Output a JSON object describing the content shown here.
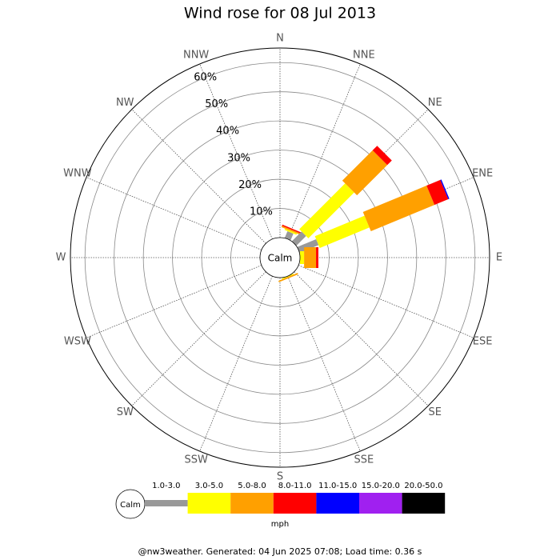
{
  "chart_data": {
    "type": "windrose",
    "title": "Wind rose for 08 Jul 2013",
    "calm_label": "Calm",
    "categories": [
      "N",
      "NNE",
      "NE",
      "ENE",
      "E",
      "ESE",
      "SE",
      "SSE",
      "S",
      "SSW",
      "SW",
      "WSW",
      "W",
      "WNW",
      "NW",
      "NNW"
    ],
    "series": [
      {
        "name": "1.0-3.0",
        "color": "#999999",
        "values": [
          0,
          2.5,
          4.7,
          7,
          0,
          0,
          0,
          0,
          0,
          0,
          0,
          0,
          0,
          0,
          0,
          0
        ]
      },
      {
        "name": "3.0-5.0",
        "color": "#ffff00",
        "values": [
          0,
          0.5,
          22.2,
          18.4,
          1.4,
          0,
          0,
          0.3,
          0,
          0,
          0,
          0,
          0,
          0,
          0,
          0
        ]
      },
      {
        "name": "5.0-8.0",
        "color": "#ffa000",
        "values": [
          0,
          0.5,
          14.7,
          23.6,
          4.1,
          0,
          0,
          0.5,
          0,
          0,
          0,
          0,
          0,
          0,
          0,
          0
        ]
      },
      {
        "name": "8.0-11.0",
        "color": "#ff0000",
        "values": [
          0,
          0.4,
          2.2,
          5.1,
          0.8,
          0,
          0,
          0,
          0,
          0,
          0,
          0,
          0,
          0,
          0,
          0
        ]
      },
      {
        "name": "11.0-15.0",
        "color": "#0000ff",
        "values": [
          0,
          0,
          0,
          0.4,
          0,
          0,
          0,
          0,
          0,
          0,
          0,
          0,
          0,
          0,
          0,
          0
        ]
      },
      {
        "name": "15.0-20.0",
        "color": "#a020f0",
        "values": [
          0,
          0,
          0,
          0,
          0,
          0,
          0,
          0,
          0,
          0,
          0,
          0,
          0,
          0,
          0,
          0
        ]
      },
      {
        "name": "20.0-50.0",
        "color": "#000000",
        "values": [
          0,
          0,
          0,
          0,
          0,
          0,
          0,
          0,
          0,
          0,
          0,
          0,
          0,
          0,
          0,
          0
        ]
      }
    ],
    "rlim": [
      0,
      65
    ],
    "rticks": [
      {
        "value": 10,
        "label": "10%"
      },
      {
        "value": 20,
        "label": "20%"
      },
      {
        "value": 30,
        "label": "30%"
      },
      {
        "value": 40,
        "label": "40%"
      },
      {
        "value": 50,
        "label": "50%"
      },
      {
        "value": 60,
        "label": "60%"
      }
    ],
    "unit": "mph",
    "footer": "@nw3weather. Generated: 04 Jun 2025 07:08; Load time: 0.36 s"
  }
}
